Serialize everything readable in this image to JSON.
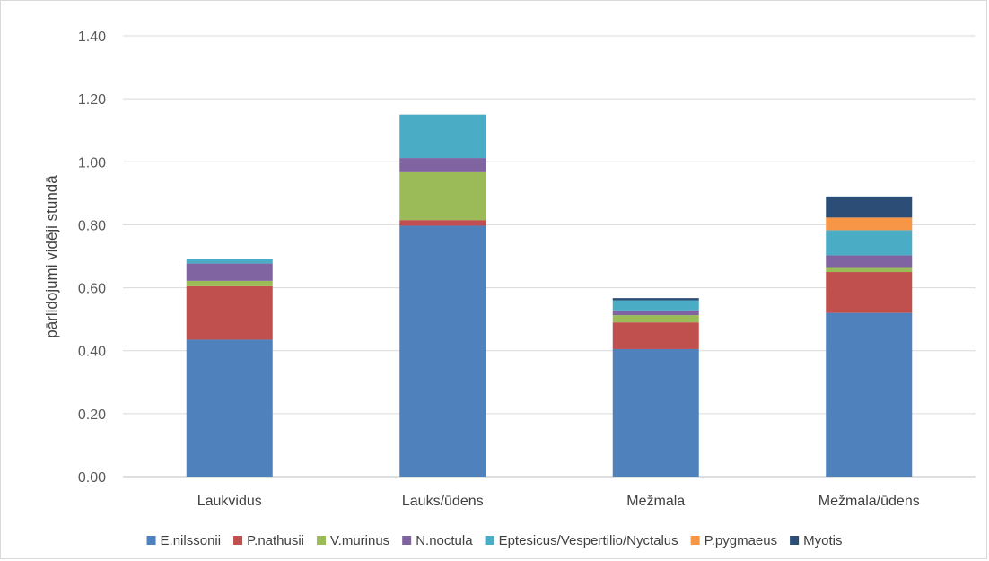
{
  "chart_data": {
    "type": "bar",
    "stacked": true,
    "title": "",
    "xlabel": "",
    "ylabel": "pārlidojumi vidēji stundā",
    "ylim": [
      0,
      1.4
    ],
    "yticks": [
      "0.00",
      "0.20",
      "0.40",
      "0.60",
      "0.80",
      "1.00",
      "1.20",
      "1.40"
    ],
    "grid": true,
    "legend_position": "bottom",
    "categories": [
      "Laukvidus",
      "Lauks/ūdens",
      "Mežmala",
      "Mežmala/ūdens"
    ],
    "series": [
      {
        "name": "E.nilssonii",
        "color": "#4F81BD",
        "values": [
          0.435,
          0.797,
          0.405,
          0.52
        ]
      },
      {
        "name": "P.nathusii",
        "color": "#C0504D",
        "values": [
          0.17,
          0.018,
          0.085,
          0.13
        ]
      },
      {
        "name": "V.murinus",
        "color": "#9BBB59",
        "values": [
          0.017,
          0.152,
          0.023,
          0.013
        ]
      },
      {
        "name": "N.noctula",
        "color": "#8064A2",
        "values": [
          0.055,
          0.045,
          0.015,
          0.04
        ]
      },
      {
        "name": "Eptesicus/Vespertilio/Nyctalus",
        "color": "#4BACC6",
        "values": [
          0.013,
          0.138,
          0.032,
          0.08
        ]
      },
      {
        "name": "P.pygmaeus",
        "color": "#F79646",
        "values": [
          0,
          0,
          0,
          0.04
        ]
      },
      {
        "name": "Myotis",
        "color": "#2C4D75",
        "values": [
          0,
          0,
          0.007,
          0.067
        ]
      }
    ]
  }
}
